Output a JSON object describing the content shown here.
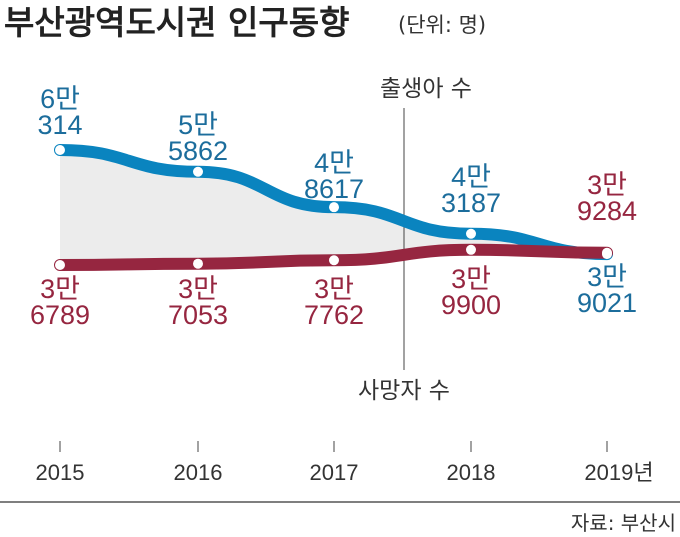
{
  "chart_data": {
    "type": "line",
    "title": "부산광역도시권 인구동향",
    "unit": "(단위: 명)",
    "categories": [
      "2015",
      "2016",
      "2017",
      "2018",
      "2019년"
    ],
    "x": [
      2015,
      2016,
      2017,
      2018,
      2019
    ],
    "series": [
      {
        "name": "출생아 수",
        "color": "#0a84bf",
        "label_color": "#1c6d9c",
        "values": [
          60314,
          55862,
          48617,
          43187,
          39021
        ],
        "labels": [
          [
            "6만",
            "314"
          ],
          [
            "5만",
            "5862"
          ],
          [
            "4만",
            "8617"
          ],
          [
            "4만",
            "3187"
          ],
          [
            "3만",
            "9021"
          ]
        ]
      },
      {
        "name": "사망자 수",
        "color": "#962640",
        "label_color": "#962640",
        "values": [
          36789,
          37053,
          37762,
          39900,
          39284
        ],
        "labels": [
          [
            "3만",
            "6789"
          ],
          [
            "3만",
            "7053"
          ],
          [
            "3만",
            "7762"
          ],
          [
            "3만",
            "9900"
          ],
          [
            "3만",
            "9284"
          ]
        ]
      }
    ],
    "fill_between": "#ececec",
    "ylim": [
      30000,
      65000
    ],
    "grid": false,
    "source": "자료: 부산시"
  }
}
